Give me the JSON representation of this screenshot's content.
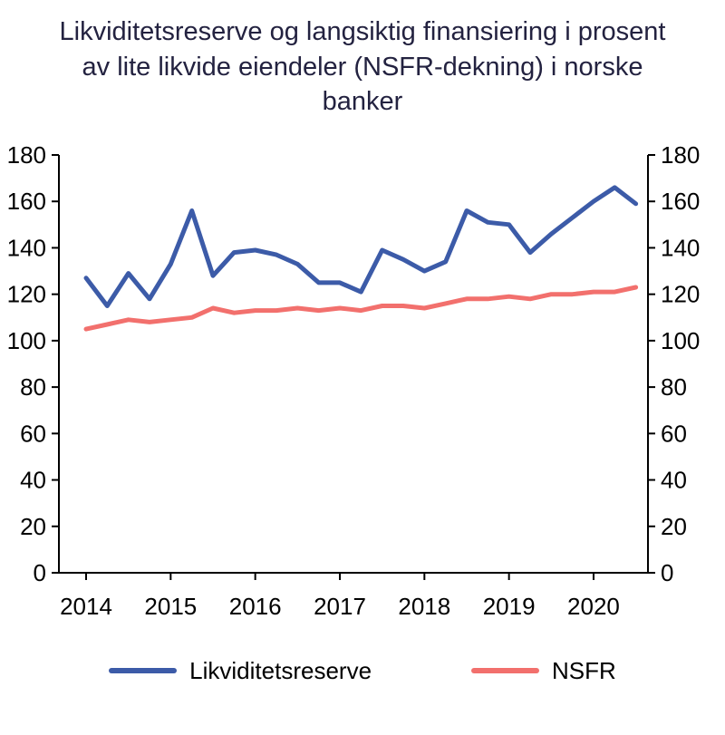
{
  "title": "Likviditetsreserve og langsiktig finansiering i prosent av lite likvide eiendeler (NSFR-dekning) i norske banker",
  "chart_data": {
    "type": "line",
    "title": "Likviditetsreserve og langsiktig finansiering i prosent av lite likvide eiendeler (NSFR-dekning) i norske banker",
    "x_start": 2014,
    "x_step_years": 0.25,
    "x_tick_labels": [
      "2014",
      "2015",
      "2016",
      "2017",
      "2018",
      "2019",
      "2020"
    ],
    "y_ticks": [
      0,
      20,
      40,
      60,
      80,
      100,
      120,
      140,
      160,
      180
    ],
    "ylim": [
      0,
      180
    ],
    "grid": false,
    "legend_position": "bottom",
    "series": [
      {
        "name": "Likviditetsreserve",
        "color": "#3c5ba8",
        "values": [
          127,
          115,
          129,
          118,
          133,
          156,
          128,
          138,
          139,
          137,
          133,
          125,
          125,
          121,
          139,
          135,
          130,
          134,
          156,
          151,
          150,
          138,
          146,
          153,
          160,
          166,
          159
        ]
      },
      {
        "name": "NSFR",
        "color": "#f2706d",
        "values": [
          105,
          107,
          109,
          108,
          109,
          110,
          114,
          112,
          113,
          113,
          114,
          113,
          114,
          113,
          115,
          115,
          114,
          116,
          118,
          118,
          119,
          118,
          120,
          120,
          121,
          121,
          123
        ]
      }
    ]
  },
  "colors": {
    "title_text": "#232240",
    "axis": "#000000"
  }
}
